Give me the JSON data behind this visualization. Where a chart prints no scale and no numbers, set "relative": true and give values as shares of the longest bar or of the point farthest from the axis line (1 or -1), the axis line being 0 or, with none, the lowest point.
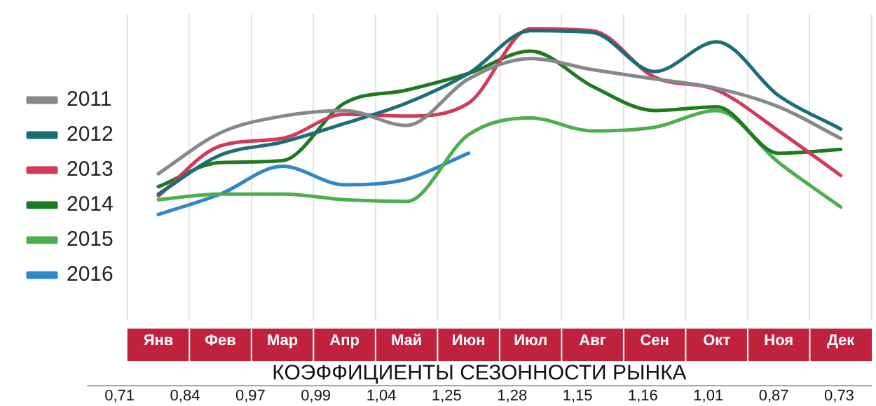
{
  "chart_data": [
    {
      "type": "line",
      "relative": true,
      "grid": "x",
      "legend": "left",
      "marker": "none",
      "line_style": "solid",
      "categories": [
        "Янв",
        "Фев",
        "Мар",
        "Апр",
        "Май",
        "Июн",
        "Июл",
        "Авг",
        "Сен",
        "Окт",
        "Ноя",
        "Дек"
      ],
      "series": [
        {
          "name": "2011",
          "color": "#888888",
          "values": [
            0.22,
            0.44,
            0.53,
            0.56,
            0.48,
            0.73,
            0.84,
            0.78,
            0.73,
            0.68,
            0.58,
            0.41
          ]
        },
        {
          "name": "2012",
          "color": "#1a6e74",
          "values": [
            0.11,
            0.32,
            0.39,
            0.49,
            0.6,
            0.76,
            0.99,
            0.98,
            0.77,
            0.93,
            0.64,
            0.46
          ]
        },
        {
          "name": "2013",
          "color": "#d23a5a",
          "values": [
            0.1,
            0.37,
            0.41,
            0.54,
            0.53,
            0.6,
            1,
            0.99,
            0.74,
            0.67,
            0.45,
            0.21
          ]
        },
        {
          "name": "2014",
          "color": "#1e7a1e",
          "values": [
            0.15,
            0.28,
            0.29,
            0.6,
            0.67,
            0.76,
            0.88,
            0.69,
            0.56,
            0.58,
            0.33,
            0.35
          ]
        },
        {
          "name": "2015",
          "color": "#4caf4c",
          "values": [
            0.08,
            0.11,
            0.11,
            0.08,
            0.07,
            0.43,
            0.52,
            0.45,
            0.47,
            0.56,
            0.28,
            0.04
          ]
        },
        {
          "name": "2016",
          "color": "#2f86c8",
          "values": [
            0,
            0.11,
            0.26,
            0.16,
            0.19,
            0.33,
            null,
            null,
            null,
            null,
            null,
            null
          ]
        }
      ]
    },
    {
      "type": "other",
      "title": "КОЭФФИЦИЕНТЫ СЕЗОННОСТИ РЫНКА",
      "value_labels": [
        "0,71",
        "0,84",
        "0,97",
        "0,99",
        "1,04",
        "1,25",
        "1,28",
        "1,15",
        "1,16",
        "1,01",
        "0,87",
        "0,73"
      ],
      "categories": [
        null,
        null,
        null,
        null,
        null,
        null,
        null,
        null,
        null,
        null,
        null,
        null
      ],
      "values": [
        0.71,
        0.84,
        0.97,
        0.99,
        1.04,
        1.25,
        1.28,
        1.15,
        1.16,
        1.01,
        0.87,
        0.73
      ]
    }
  ]
}
